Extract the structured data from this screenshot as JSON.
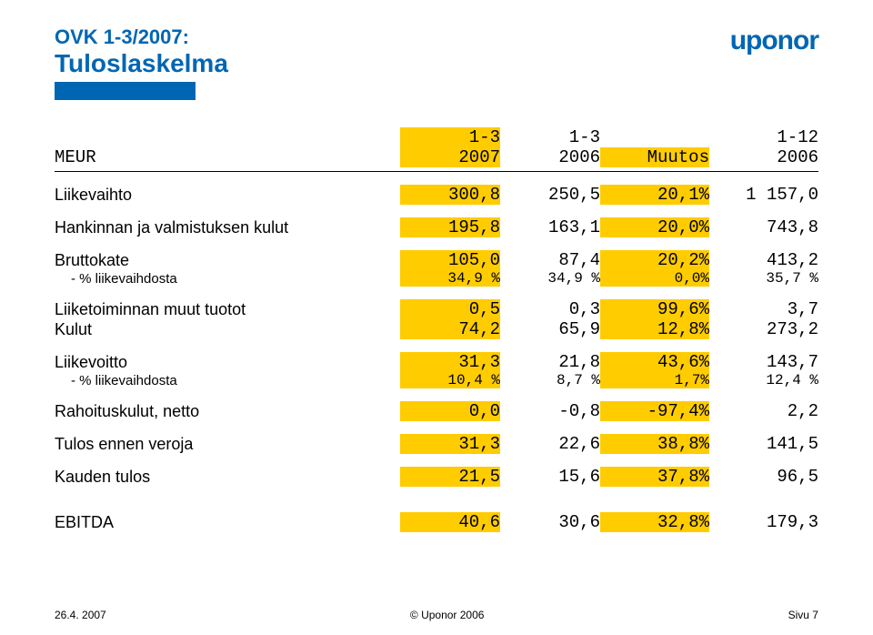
{
  "header": {
    "title_line1": "OVK 1-3/2007:",
    "title_line2": "Tuloslaskelma",
    "logo": "uponor"
  },
  "colors": {
    "brand_blue": "#0066b3",
    "highlight_yellow": "#ffcc00",
    "text_black": "#000000",
    "background": "#ffffff"
  },
  "table": {
    "columns": {
      "label": "MEUR",
      "c1_top": "1-3",
      "c1_bot": "2007",
      "c2_top": "1-3",
      "c2_bot": "2006",
      "c3_top": "Muutos",
      "c3_bot": "",
      "c4_top": "1-12",
      "c4_bot": "2006"
    },
    "rows": [
      {
        "label": "Liikevaihto",
        "c1": "300,8",
        "c2": "250,5",
        "c3": "20,1%",
        "c4": "1 157,0"
      },
      {
        "label": "Hankinnan ja valmistuksen kulut",
        "c1": "195,8",
        "c2": "163,1",
        "c3": "20,0%",
        "c4": "743,8"
      },
      {
        "label": "Bruttokate",
        "c1": "105,0",
        "c2": "87,4",
        "c3": "20,2%",
        "c4": "413,2"
      },
      {
        "label": "- % liikevaihdosta",
        "sub": true,
        "c1": "34,9 %",
        "c2": "34,9 %",
        "c3": "0,0%",
        "c4": "35,7 %"
      },
      {
        "label": "Liiketoiminnan muut tuotot",
        "c1": "0,5",
        "c2": "0,3",
        "c3": "99,6%",
        "c4": "3,7"
      },
      {
        "label": "Kulut",
        "c1": "74,2",
        "c2": "65,9",
        "c3": "12,8%",
        "c4": "273,2"
      },
      {
        "label": "Liikevoitto",
        "c1": "31,3",
        "c2": "21,8",
        "c3": "43,6%",
        "c4": "143,7"
      },
      {
        "label": "- % liikevaihdosta",
        "sub": true,
        "c1": "10,4 %",
        "c2": "8,7 %",
        "c3": "1,7%",
        "c4": "12,4 %"
      },
      {
        "label": "Rahoituskulut, netto",
        "c1": "0,0",
        "c2": "-0,8",
        "c3": "-97,4%",
        "c4": "2,2"
      },
      {
        "label": "Tulos ennen veroja",
        "c1": "31,3",
        "c2": "22,6",
        "c3": "38,8%",
        "c4": "141,5"
      },
      {
        "label": "Kauden tulos",
        "c1": "21,5",
        "c2": "15,6",
        "c3": "37,8%",
        "c4": "96,5"
      },
      {
        "label": "EBITDA",
        "c1": "40,6",
        "c2": "30,6",
        "c3": "32,8%",
        "c4": "179,3"
      }
    ]
  },
  "footer": {
    "left": "26.4. 2007",
    "center": "© Uponor 2006",
    "right": "Sivu 7"
  }
}
